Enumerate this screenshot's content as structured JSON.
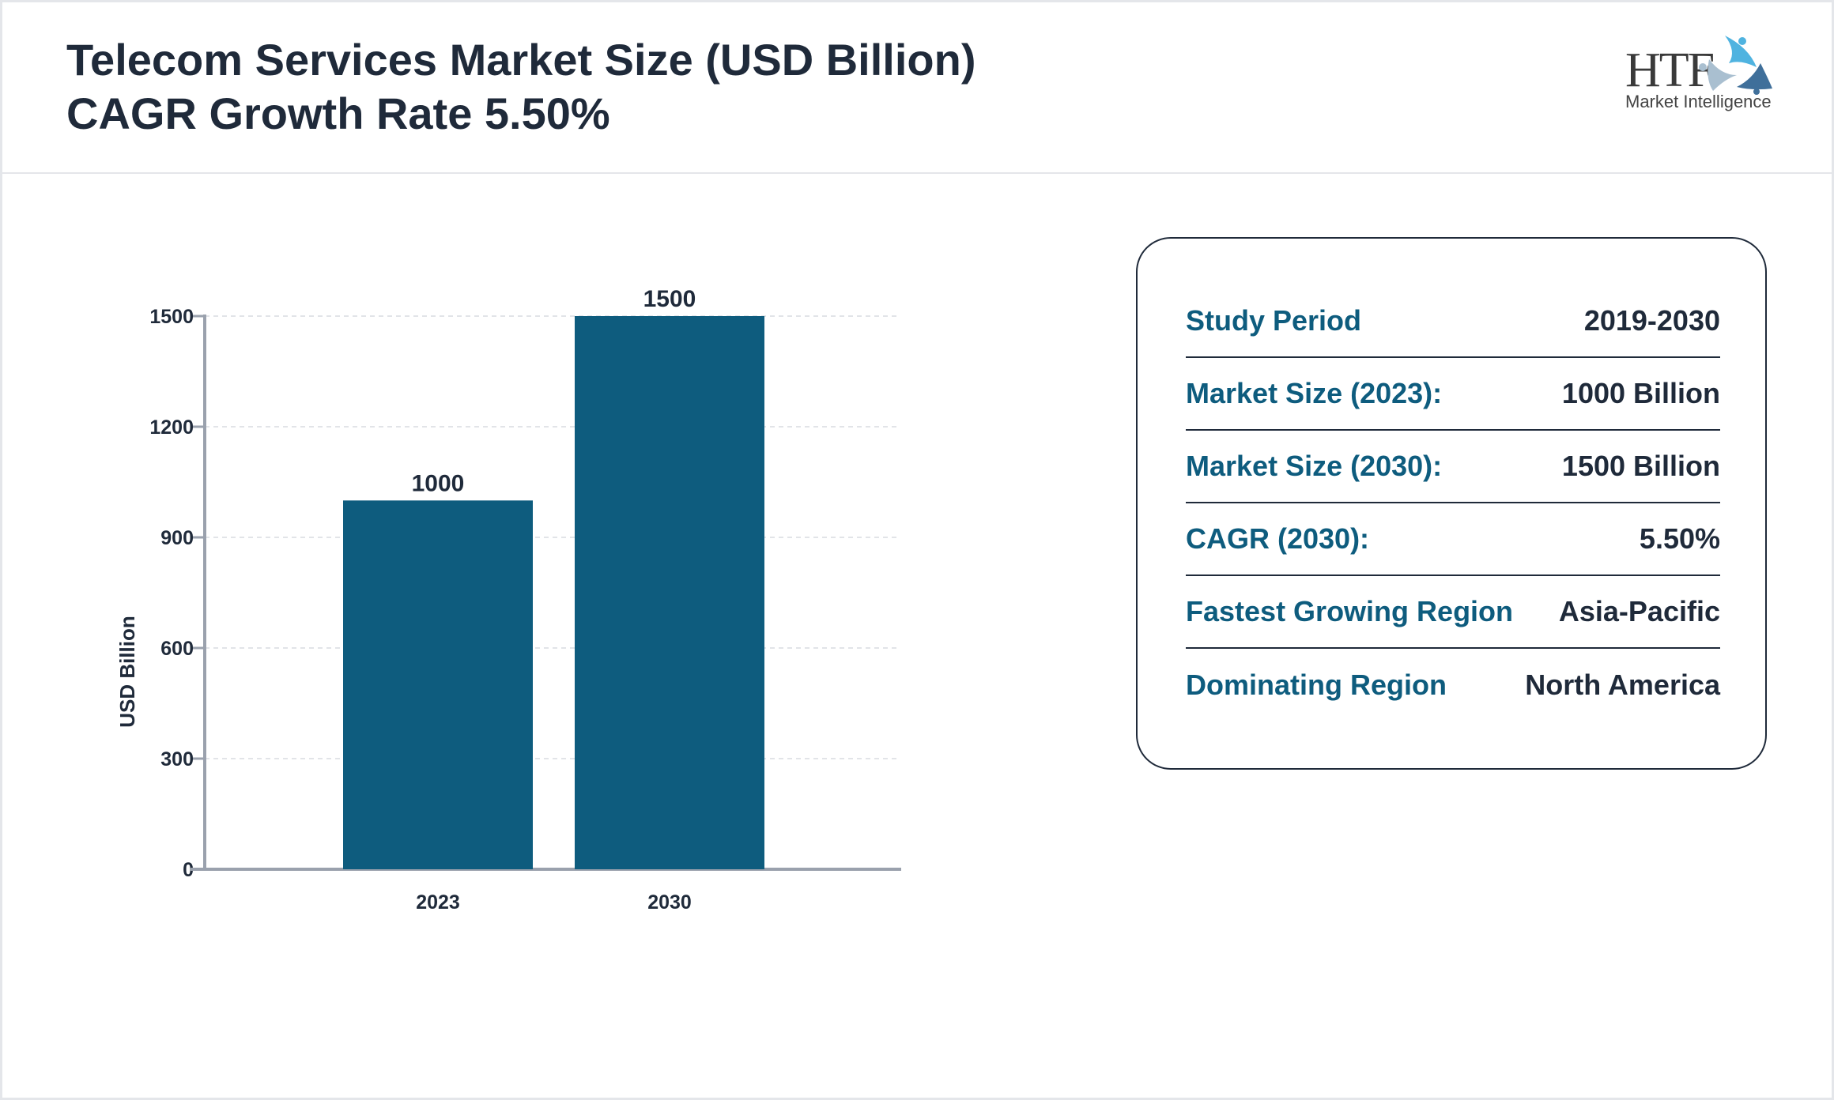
{
  "header": {
    "title_line1": "Telecom Services Market Size (USD Billion)",
    "title_line2": "CAGR Growth Rate 5.50%"
  },
  "logo": {
    "text": "HTF",
    "subtitle": "Market Intelligence"
  },
  "chart_data": {
    "type": "bar",
    "categories": [
      "2023",
      "2030"
    ],
    "values": [
      1000,
      1500
    ],
    "ylabel": "USD Billion",
    "xlabel": "",
    "ylim": [
      0,
      1500
    ],
    "yticks": [
      0,
      300,
      600,
      900,
      1200,
      1500
    ],
    "grid": true,
    "bar_color": "#0e5c7e"
  },
  "summary": {
    "rows": [
      {
        "label": "Study Period",
        "value": "2019-2030"
      },
      {
        "label": "Market Size (2023):",
        "value": "1000 Billion"
      },
      {
        "label": "Market Size (2030):",
        "value": "1500 Billion"
      },
      {
        "label": "CAGR (2030):",
        "value": "5.50%"
      },
      {
        "label": "Fastest Growing Region",
        "value": "Asia-Pacific"
      },
      {
        "label": "Dominating Region",
        "value": "North America"
      }
    ]
  }
}
